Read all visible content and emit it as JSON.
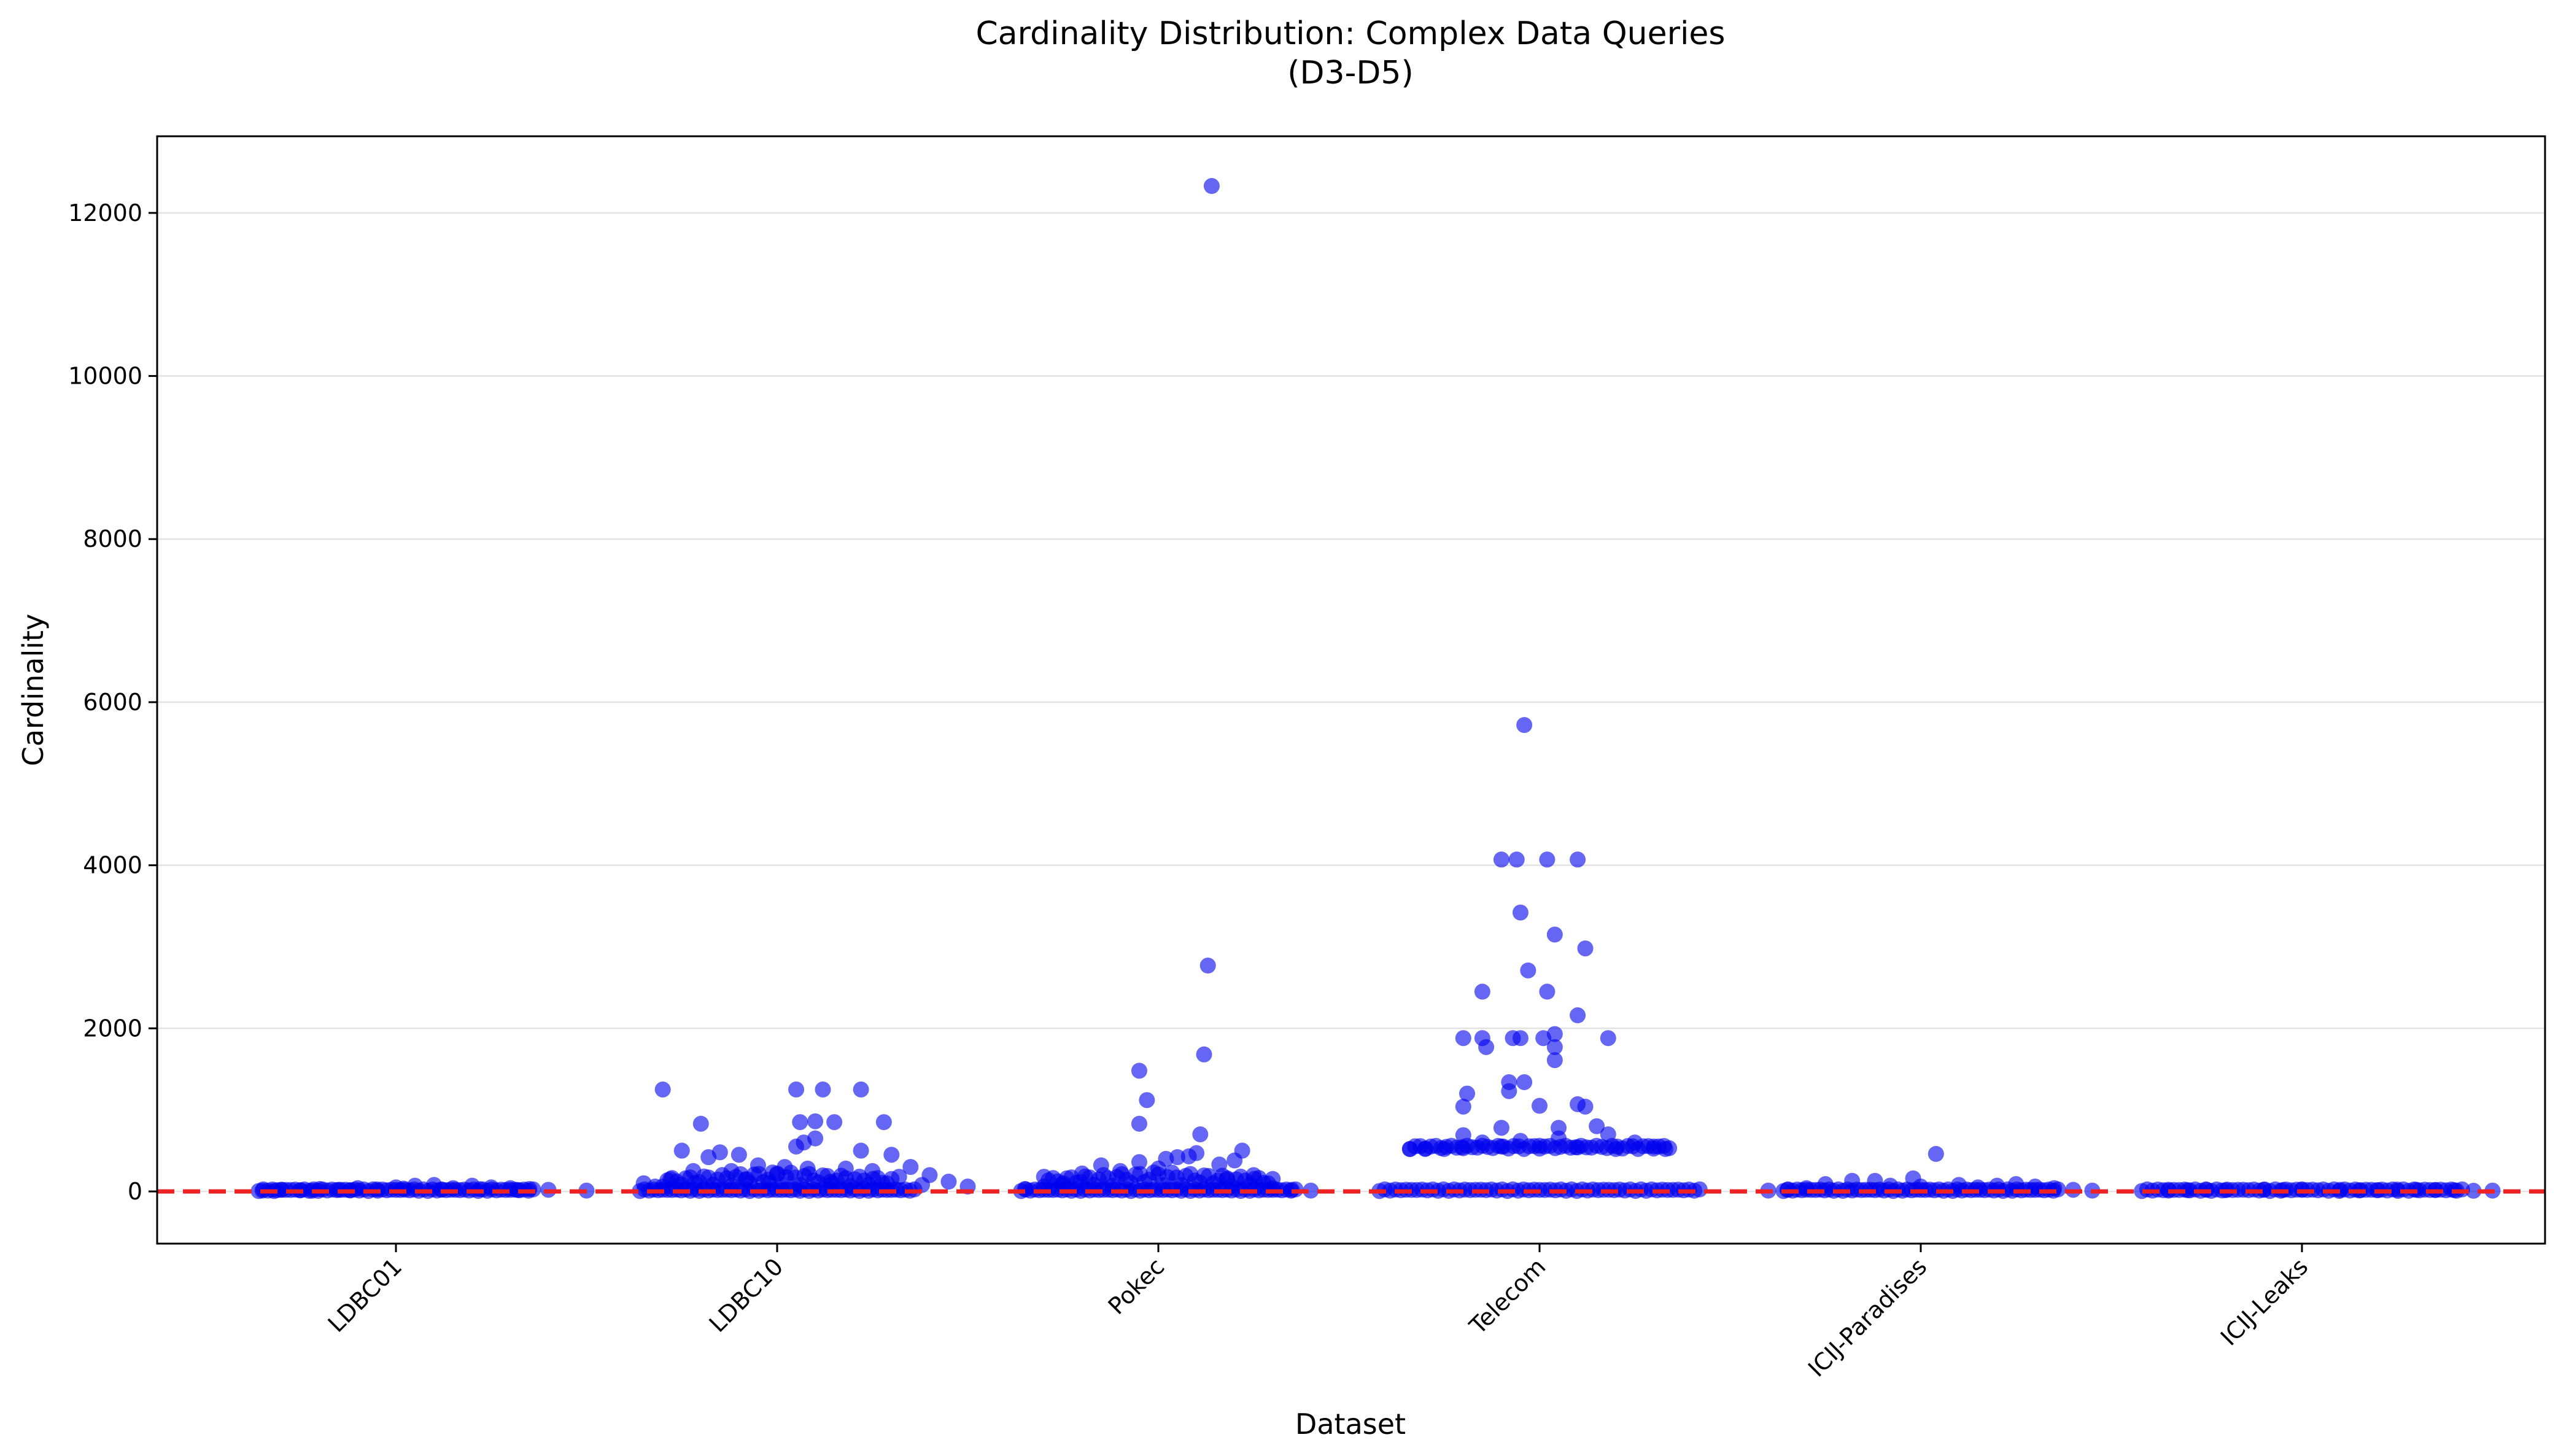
{
  "chart_data": {
    "type": "scatter",
    "title": "Cardinality Distribution: Complex Data Queries",
    "subtitle": "(D3-D5)",
    "xlabel": "Dataset",
    "ylabel": "Cardinality",
    "categories": [
      "LDBC01",
      "LDBC10",
      "Pokec",
      "Telecom",
      "ICIJ-Paradises",
      "ICIJ-Leaks"
    ],
    "ylim": [
      -640,
      12940
    ],
    "yticks": [
      0,
      2000,
      4000,
      6000,
      8000,
      10000,
      12000
    ],
    "grid": "horizontal",
    "point_color": "#0000ee",
    "reference_line": {
      "y": 0,
      "color": "#ee2222",
      "style": "dashed"
    },
    "series": [
      {
        "category": "LDBC01",
        "points": [
          [
            -0.35,
            10
          ],
          [
            -0.3,
            20
          ],
          [
            -0.25,
            15
          ],
          [
            -0.2,
            30
          ],
          [
            -0.15,
            20
          ],
          [
            -0.1,
            40
          ],
          [
            -0.05,
            25
          ],
          [
            0,
            50
          ],
          [
            0.05,
            70
          ],
          [
            0.1,
            80
          ],
          [
            0.15,
            40
          ],
          [
            0.2,
            70
          ],
          [
            0.25,
            50
          ],
          [
            0.3,
            40
          ],
          [
            0.35,
            30
          ],
          [
            0.4,
            20
          ],
          [
            0.5,
            10
          ],
          [
            -0.32,
            5
          ],
          [
            -0.22,
            8
          ],
          [
            -0.12,
            12
          ],
          [
            0.02,
            35
          ],
          [
            0.12,
            22
          ],
          [
            0.22,
            28
          ],
          [
            0.32,
            18
          ]
        ]
      },
      {
        "category": "LDBC10",
        "points": [
          [
            -0.3,
            1250
          ],
          [
            -0.2,
            830
          ],
          [
            -0.25,
            500
          ],
          [
            -0.15,
            480
          ],
          [
            -0.1,
            450
          ],
          [
            -0.18,
            420
          ],
          [
            -0.05,
            320
          ],
          [
            0.02,
            300
          ],
          [
            0.05,
            550
          ],
          [
            0.07,
            600
          ],
          [
            0.1,
            650
          ],
          [
            0.06,
            850
          ],
          [
            0.1,
            860
          ],
          [
            0.15,
            850
          ],
          [
            0.05,
            1250
          ],
          [
            0.12,
            1250
          ],
          [
            0.22,
            1250
          ],
          [
            0.28,
            850
          ],
          [
            0.22,
            500
          ],
          [
            0.3,
            450
          ],
          [
            0.35,
            300
          ],
          [
            0.4,
            200
          ],
          [
            0.45,
            120
          ],
          [
            0.5,
            60
          ],
          [
            -0.35,
            100
          ],
          [
            -0.32,
            60
          ],
          [
            -0.28,
            150
          ],
          [
            -0.22,
            250
          ],
          [
            -0.12,
            250
          ],
          [
            -0.08,
            150
          ],
          [
            0,
            220
          ],
          [
            0.08,
            280
          ],
          [
            0.18,
            280
          ],
          [
            0.25,
            250
          ],
          [
            0.32,
            180
          ],
          [
            -0.02,
            100
          ],
          [
            0.14,
            120
          ],
          [
            0.38,
            80
          ]
        ]
      },
      {
        "category": "Pokec",
        "points": [
          [
            0.14,
            12330
          ],
          [
            0.13,
            2770
          ],
          [
            0.12,
            1680
          ],
          [
            -0.05,
            1480
          ],
          [
            -0.03,
            1120
          ],
          [
            -0.05,
            830
          ],
          [
            0.11,
            700
          ],
          [
            0.22,
            500
          ],
          [
            0.1,
            470
          ],
          [
            0.08,
            430
          ],
          [
            0.05,
            420
          ],
          [
            0.02,
            400
          ],
          [
            -0.05,
            360
          ],
          [
            -0.15,
            320
          ],
          [
            -0.2,
            220
          ],
          [
            -0.3,
            180
          ],
          [
            -0.35,
            30
          ],
          [
            0.3,
            40
          ],
          [
            0.18,
            150
          ],
          [
            0.25,
            200
          ],
          [
            0.16,
            330
          ],
          [
            0.2,
            380
          ],
          [
            -0.1,
            250
          ],
          [
            0.0,
            280
          ],
          [
            -0.25,
            100
          ],
          [
            0.35,
            20
          ],
          [
            0.4,
            10
          ]
        ]
      },
      {
        "category": "Telecom",
        "points": [
          [
            -0.04,
            5720
          ],
          [
            -0.1,
            4070
          ],
          [
            -0.06,
            4070
          ],
          [
            0.02,
            4070
          ],
          [
            0.1,
            4070
          ],
          [
            -0.05,
            3420
          ],
          [
            0.04,
            3150
          ],
          [
            0.12,
            2980
          ],
          [
            -0.03,
            2710
          ],
          [
            -0.15,
            2450
          ],
          [
            0.02,
            2450
          ],
          [
            0.1,
            2160
          ],
          [
            -0.2,
            1880
          ],
          [
            -0.15,
            1880
          ],
          [
            -0.07,
            1880
          ],
          [
            -0.05,
            1880
          ],
          [
            0.01,
            1880
          ],
          [
            0.04,
            1930
          ],
          [
            0.18,
            1880
          ],
          [
            -0.14,
            1770
          ],
          [
            0.04,
            1770
          ],
          [
            0.04,
            1610
          ],
          [
            -0.08,
            1340
          ],
          [
            -0.04,
            1340
          ],
          [
            -0.08,
            1230
          ],
          [
            -0.19,
            1200
          ],
          [
            -0.2,
            1040
          ],
          [
            0.0,
            1050
          ],
          [
            0.1,
            1070
          ],
          [
            0.12,
            1040
          ],
          [
            0.15,
            800
          ],
          [
            0.05,
            780
          ],
          [
            -0.1,
            780
          ],
          [
            -0.2,
            690
          ],
          [
            0.25,
            600
          ],
          [
            0.3,
            550
          ],
          [
            -0.3,
            520
          ],
          [
            -0.25,
            520
          ],
          [
            -0.2,
            530
          ],
          [
            -0.1,
            550
          ],
          [
            0.0,
            560
          ],
          [
            0.1,
            540
          ],
          [
            0.2,
            520
          ],
          [
            0.33,
            520
          ],
          [
            -0.34,
            520
          ],
          [
            0.05,
            650
          ],
          [
            -0.05,
            620
          ],
          [
            0.18,
            700
          ],
          [
            -0.15,
            600
          ]
        ]
      },
      {
        "category": "ICIJ-Paradises",
        "points": [
          [
            0.04,
            460
          ],
          [
            -0.02,
            160
          ],
          [
            -0.12,
            130
          ],
          [
            -0.18,
            130
          ],
          [
            -0.25,
            90
          ],
          [
            0.1,
            80
          ],
          [
            0.2,
            70
          ],
          [
            0.25,
            90
          ],
          [
            0.3,
            60
          ],
          [
            0.35,
            40
          ],
          [
            0.4,
            20
          ],
          [
            0.45,
            10
          ],
          [
            -0.3,
            40
          ],
          [
            -0.35,
            20
          ],
          [
            -0.4,
            10
          ],
          [
            0.0,
            60
          ],
          [
            0.15,
            50
          ],
          [
            -0.08,
            70
          ]
        ]
      },
      {
        "category": "ICIJ-Leaks",
        "points": [
          [
            -0.35,
            10
          ],
          [
            -0.3,
            15
          ],
          [
            -0.25,
            20
          ],
          [
            -0.2,
            15
          ],
          [
            -0.1,
            20
          ],
          [
            0.0,
            25
          ],
          [
            0.1,
            20
          ],
          [
            0.2,
            15
          ],
          [
            0.3,
            20
          ],
          [
            0.4,
            15
          ],
          [
            0.5,
            10
          ],
          [
            -0.05,
            18
          ],
          [
            0.15,
            12
          ],
          [
            0.25,
            22
          ],
          [
            0.35,
            16
          ],
          [
            0.45,
            8
          ]
        ]
      }
    ]
  }
}
